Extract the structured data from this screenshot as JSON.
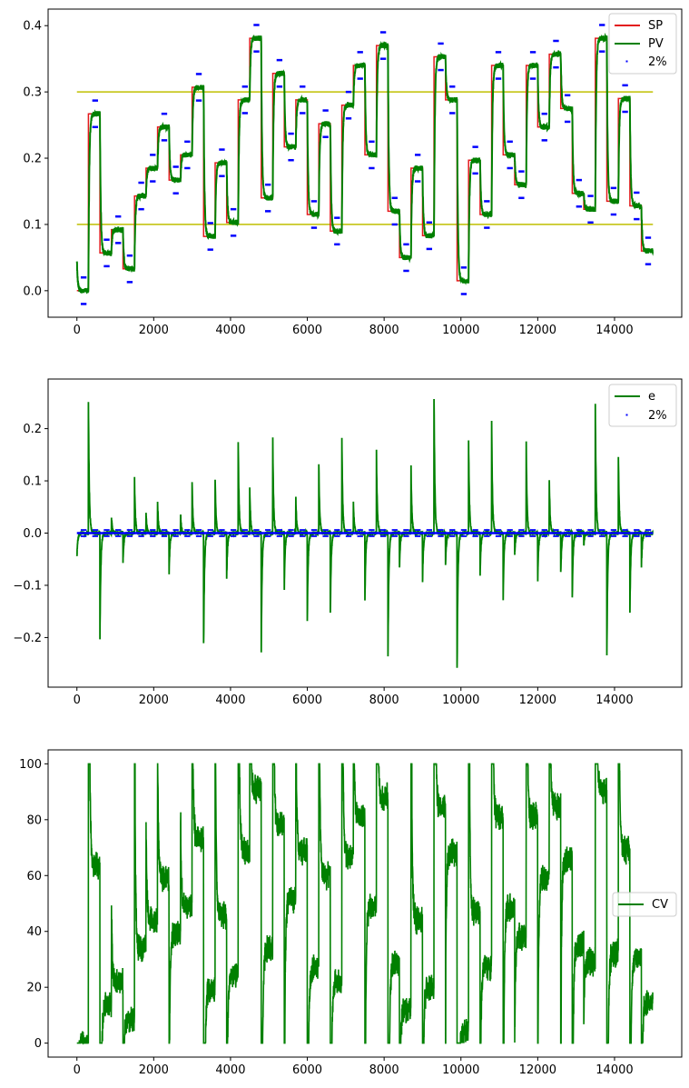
{
  "chart_data": [
    {
      "type": "line",
      "xlim": [
        -750,
        15750
      ],
      "ylim": [
        -0.04,
        0.425
      ],
      "x_ticks": [
        "0",
        "2000",
        "4000",
        "6000",
        "8000",
        "10000",
        "12000",
        "14000"
      ],
      "x_tick_values": [
        0,
        2000,
        4000,
        6000,
        8000,
        10000,
        12000,
        14000
      ],
      "y_ticks": [
        "0.0",
        "0.1",
        "0.2",
        "0.3",
        "0.4"
      ],
      "y_tick_values": [
        0.0,
        0.1,
        0.2,
        0.3,
        0.4
      ],
      "grid": false,
      "legend_position": "upper right",
      "legend": [
        "SP",
        "PV",
        "2%"
      ],
      "colors": {
        "SP": "#e31a1c",
        "PV": "#008000",
        "band": "#0000ff",
        "limits": "#bfbf00"
      },
      "limit_lines": [
        0.1,
        0.3
      ],
      "limit_x_range": [
        0,
        15000
      ],
      "step_length": 300,
      "setpoints": [
        0.0,
        0.267,
        0.057,
        0.092,
        0.033,
        0.143,
        0.185,
        0.247,
        0.167,
        0.205,
        0.307,
        0.082,
        0.193,
        0.103,
        0.288,
        0.381,
        0.14,
        0.328,
        0.217,
        0.288,
        0.115,
        0.252,
        0.09,
        0.28,
        0.34,
        0.205,
        0.37,
        0.12,
        0.05,
        0.185,
        0.083,
        0.353,
        0.288,
        0.015,
        0.197,
        0.115,
        0.34,
        0.205,
        0.16,
        0.34,
        0.247,
        0.357,
        0.275,
        0.147,
        0.123,
        0.381,
        0.135,
        0.29,
        0.128,
        0.06
      ],
      "band_half_width": 0.02
    },
    {
      "type": "line",
      "xlim": [
        -750,
        15750
      ],
      "ylim": [
        -0.295,
        0.295
      ],
      "x_ticks": [
        "0",
        "2000",
        "4000",
        "6000",
        "8000",
        "10000",
        "12000",
        "14000"
      ],
      "x_tick_values": [
        0,
        2000,
        4000,
        6000,
        8000,
        10000,
        12000,
        14000
      ],
      "y_ticks": [
        "−0.2",
        "−0.1",
        "0.0",
        "0.1",
        "0.2"
      ],
      "y_tick_values": [
        -0.2,
        -0.1,
        0.0,
        0.1,
        0.2
      ],
      "grid": false,
      "legend_position": "upper right",
      "legend": [
        "e",
        "2%"
      ],
      "colors": {
        "e": "#008000",
        "band": "#0000ff"
      }
    },
    {
      "type": "line",
      "xlim": [
        -750,
        15750
      ],
      "ylim": [
        -5,
        105
      ],
      "x_ticks": [
        "0",
        "2000",
        "4000",
        "6000",
        "8000",
        "10000",
        "12000",
        "14000"
      ],
      "x_tick_values": [
        0,
        2000,
        4000,
        6000,
        8000,
        10000,
        12000,
        14000
      ],
      "y_ticks": [
        "0",
        "20",
        "40",
        "60",
        "80",
        "100"
      ],
      "y_tick_values": [
        0,
        20,
        40,
        60,
        80,
        100
      ],
      "grid": false,
      "legend_position": "center right",
      "legend": [
        "CV"
      ],
      "colors": {
        "CV": "#008000"
      }
    }
  ]
}
